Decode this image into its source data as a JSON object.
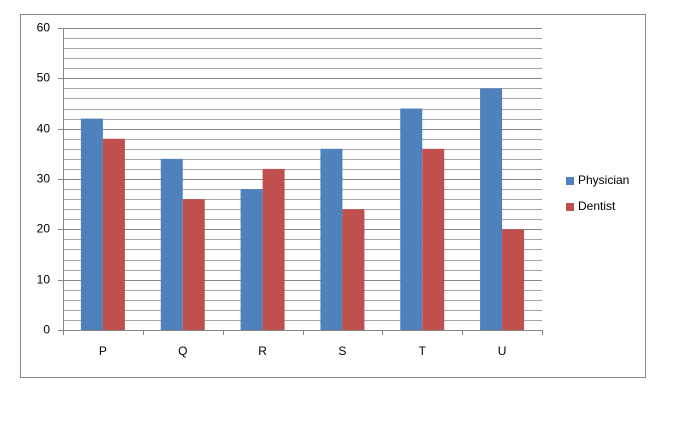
{
  "chart_data": {
    "type": "bar",
    "categories": [
      "P",
      "Q",
      "R",
      "S",
      "T",
      "U"
    ],
    "series": [
      {
        "name": "Physician",
        "color": "#4f81bd",
        "values": [
          42,
          34,
          28,
          36,
          44,
          48
        ]
      },
      {
        "name": "Dentist",
        "color": "#c0504d",
        "values": [
          38,
          26,
          32,
          24,
          36,
          20
        ]
      }
    ],
    "ylim": [
      0,
      60
    ],
    "yticks": [
      0,
      10,
      20,
      30,
      40,
      50,
      60
    ],
    "minor_yticks": [
      2,
      4,
      6,
      8,
      12,
      14,
      16,
      18,
      22,
      24,
      26,
      28,
      32,
      34,
      36,
      38,
      42,
      44,
      46,
      48,
      52,
      54,
      56,
      58
    ],
    "grid": true,
    "legend": "right"
  }
}
